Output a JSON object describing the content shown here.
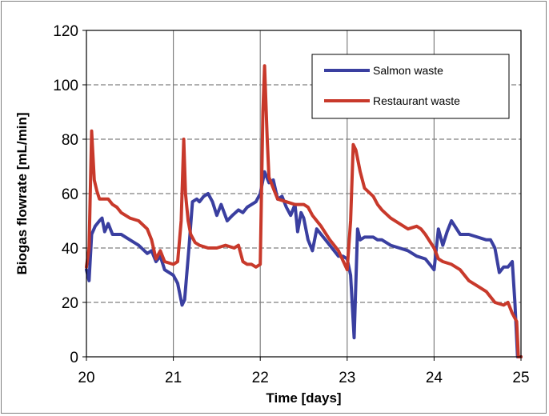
{
  "chart_data": {
    "type": "line",
    "title": "",
    "xlabel": "Time [days]",
    "ylabel": "Biogas flowrate  [mL/min]",
    "xlim": [
      20,
      25
    ],
    "ylim": [
      0,
      120
    ],
    "xticks": [
      "20",
      "21",
      "22",
      "23",
      "24",
      "25"
    ],
    "yticks": [
      "0",
      "20",
      "40",
      "60",
      "80",
      "100",
      "120"
    ],
    "grid": {
      "vertical": "solid",
      "horizontal": "dashed"
    },
    "legend_position": "top-right",
    "series": [
      {
        "name": "Salmon waste",
        "color": "#3a3fa0",
        "points": [
          [
            20.0,
            32
          ],
          [
            20.03,
            28
          ],
          [
            20.06,
            45
          ],
          [
            20.1,
            48
          ],
          [
            20.15,
            50
          ],
          [
            20.18,
            51
          ],
          [
            20.21,
            46
          ],
          [
            20.25,
            49
          ],
          [
            20.3,
            45
          ],
          [
            20.4,
            45
          ],
          [
            20.5,
            43
          ],
          [
            20.6,
            41
          ],
          [
            20.7,
            38
          ],
          [
            20.75,
            39
          ],
          [
            20.8,
            35
          ],
          [
            20.85,
            37
          ],
          [
            20.9,
            32
          ],
          [
            21.0,
            30
          ],
          [
            21.05,
            27
          ],
          [
            21.1,
            19
          ],
          [
            21.13,
            21
          ],
          [
            21.18,
            40
          ],
          [
            21.22,
            57
          ],
          [
            21.27,
            58
          ],
          [
            21.3,
            57
          ],
          [
            21.35,
            59
          ],
          [
            21.4,
            60
          ],
          [
            21.45,
            57
          ],
          [
            21.5,
            52
          ],
          [
            21.55,
            56
          ],
          [
            21.62,
            50
          ],
          [
            21.68,
            52
          ],
          [
            21.75,
            54
          ],
          [
            21.8,
            53
          ],
          [
            21.85,
            55
          ],
          [
            21.95,
            57
          ],
          [
            22.0,
            60
          ],
          [
            22.05,
            68
          ],
          [
            22.1,
            64
          ],
          [
            22.15,
            65
          ],
          [
            22.2,
            58
          ],
          [
            22.25,
            59
          ],
          [
            22.3,
            55
          ],
          [
            22.35,
            52
          ],
          [
            22.4,
            56
          ],
          [
            22.43,
            46
          ],
          [
            22.47,
            53
          ],
          [
            22.5,
            51
          ],
          [
            22.55,
            43
          ],
          [
            22.6,
            39
          ],
          [
            22.65,
            47
          ],
          [
            22.7,
            45
          ],
          [
            22.75,
            43
          ],
          [
            22.8,
            41
          ],
          [
            22.85,
            39
          ],
          [
            22.9,
            37
          ],
          [
            22.95,
            37
          ],
          [
            23.0,
            36
          ],
          [
            23.04,
            30
          ],
          [
            23.08,
            7
          ],
          [
            23.12,
            47
          ],
          [
            23.15,
            43
          ],
          [
            23.2,
            44
          ],
          [
            23.3,
            44
          ],
          [
            23.35,
            43
          ],
          [
            23.4,
            43
          ],
          [
            23.5,
            41
          ],
          [
            23.6,
            40
          ],
          [
            23.7,
            39
          ],
          [
            23.8,
            37
          ],
          [
            23.9,
            36
          ],
          [
            23.95,
            34
          ],
          [
            24.0,
            32
          ],
          [
            24.05,
            47
          ],
          [
            24.1,
            41
          ],
          [
            24.15,
            46
          ],
          [
            24.2,
            50
          ],
          [
            24.3,
            45
          ],
          [
            24.4,
            45
          ],
          [
            24.5,
            44
          ],
          [
            24.6,
            43
          ],
          [
            24.65,
            43
          ],
          [
            24.7,
            40
          ],
          [
            24.75,
            31
          ],
          [
            24.8,
            33
          ],
          [
            24.85,
            33
          ],
          [
            24.9,
            35
          ],
          [
            24.93,
            20
          ],
          [
            24.96,
            0
          ],
          [
            25.0,
            0
          ]
        ]
      },
      {
        "name": "Restaurant waste",
        "color": "#c8392b",
        "points": [
          [
            20.0,
            33
          ],
          [
            20.03,
            40
          ],
          [
            20.06,
            83
          ],
          [
            20.09,
            65
          ],
          [
            20.12,
            61
          ],
          [
            20.15,
            58
          ],
          [
            20.25,
            58
          ],
          [
            20.3,
            56
          ],
          [
            20.35,
            55
          ],
          [
            20.4,
            53
          ],
          [
            20.5,
            51
          ],
          [
            20.6,
            50
          ],
          [
            20.7,
            47
          ],
          [
            20.75,
            43
          ],
          [
            20.8,
            36
          ],
          [
            20.85,
            39
          ],
          [
            20.9,
            35
          ],
          [
            21.0,
            34
          ],
          [
            21.05,
            35
          ],
          [
            21.09,
            50
          ],
          [
            21.12,
            80
          ],
          [
            21.14,
            60
          ],
          [
            21.17,
            50
          ],
          [
            21.2,
            45
          ],
          [
            21.25,
            42
          ],
          [
            21.3,
            41
          ],
          [
            21.4,
            40
          ],
          [
            21.5,
            40
          ],
          [
            21.6,
            41
          ],
          [
            21.7,
            40
          ],
          [
            21.75,
            41
          ],
          [
            21.8,
            35
          ],
          [
            21.85,
            34
          ],
          [
            21.9,
            34
          ],
          [
            21.95,
            33
          ],
          [
            22.0,
            34
          ],
          [
            22.03,
            90
          ],
          [
            22.05,
            107
          ],
          [
            22.08,
            80
          ],
          [
            22.1,
            66
          ],
          [
            22.15,
            62
          ],
          [
            22.2,
            58
          ],
          [
            22.3,
            57
          ],
          [
            22.4,
            56
          ],
          [
            22.5,
            56
          ],
          [
            22.55,
            55
          ],
          [
            22.6,
            52
          ],
          [
            22.7,
            48
          ],
          [
            22.8,
            43
          ],
          [
            22.9,
            39
          ],
          [
            23.0,
            32
          ],
          [
            23.04,
            50
          ],
          [
            23.07,
            78
          ],
          [
            23.1,
            76
          ],
          [
            23.15,
            68
          ],
          [
            23.2,
            62
          ],
          [
            23.3,
            59
          ],
          [
            23.35,
            56
          ],
          [
            23.4,
            54
          ],
          [
            23.5,
            51
          ],
          [
            23.6,
            49
          ],
          [
            23.7,
            47
          ],
          [
            23.8,
            48
          ],
          [
            23.85,
            47
          ],
          [
            23.9,
            45
          ],
          [
            24.0,
            40
          ],
          [
            24.05,
            36
          ],
          [
            24.1,
            35
          ],
          [
            24.2,
            34
          ],
          [
            24.3,
            32
          ],
          [
            24.4,
            28
          ],
          [
            24.5,
            26
          ],
          [
            24.6,
            24
          ],
          [
            24.7,
            20
          ],
          [
            24.8,
            19
          ],
          [
            24.85,
            20
          ],
          [
            24.9,
            16
          ],
          [
            24.95,
            13
          ],
          [
            24.97,
            0
          ],
          [
            25.0,
            0
          ]
        ]
      }
    ]
  }
}
